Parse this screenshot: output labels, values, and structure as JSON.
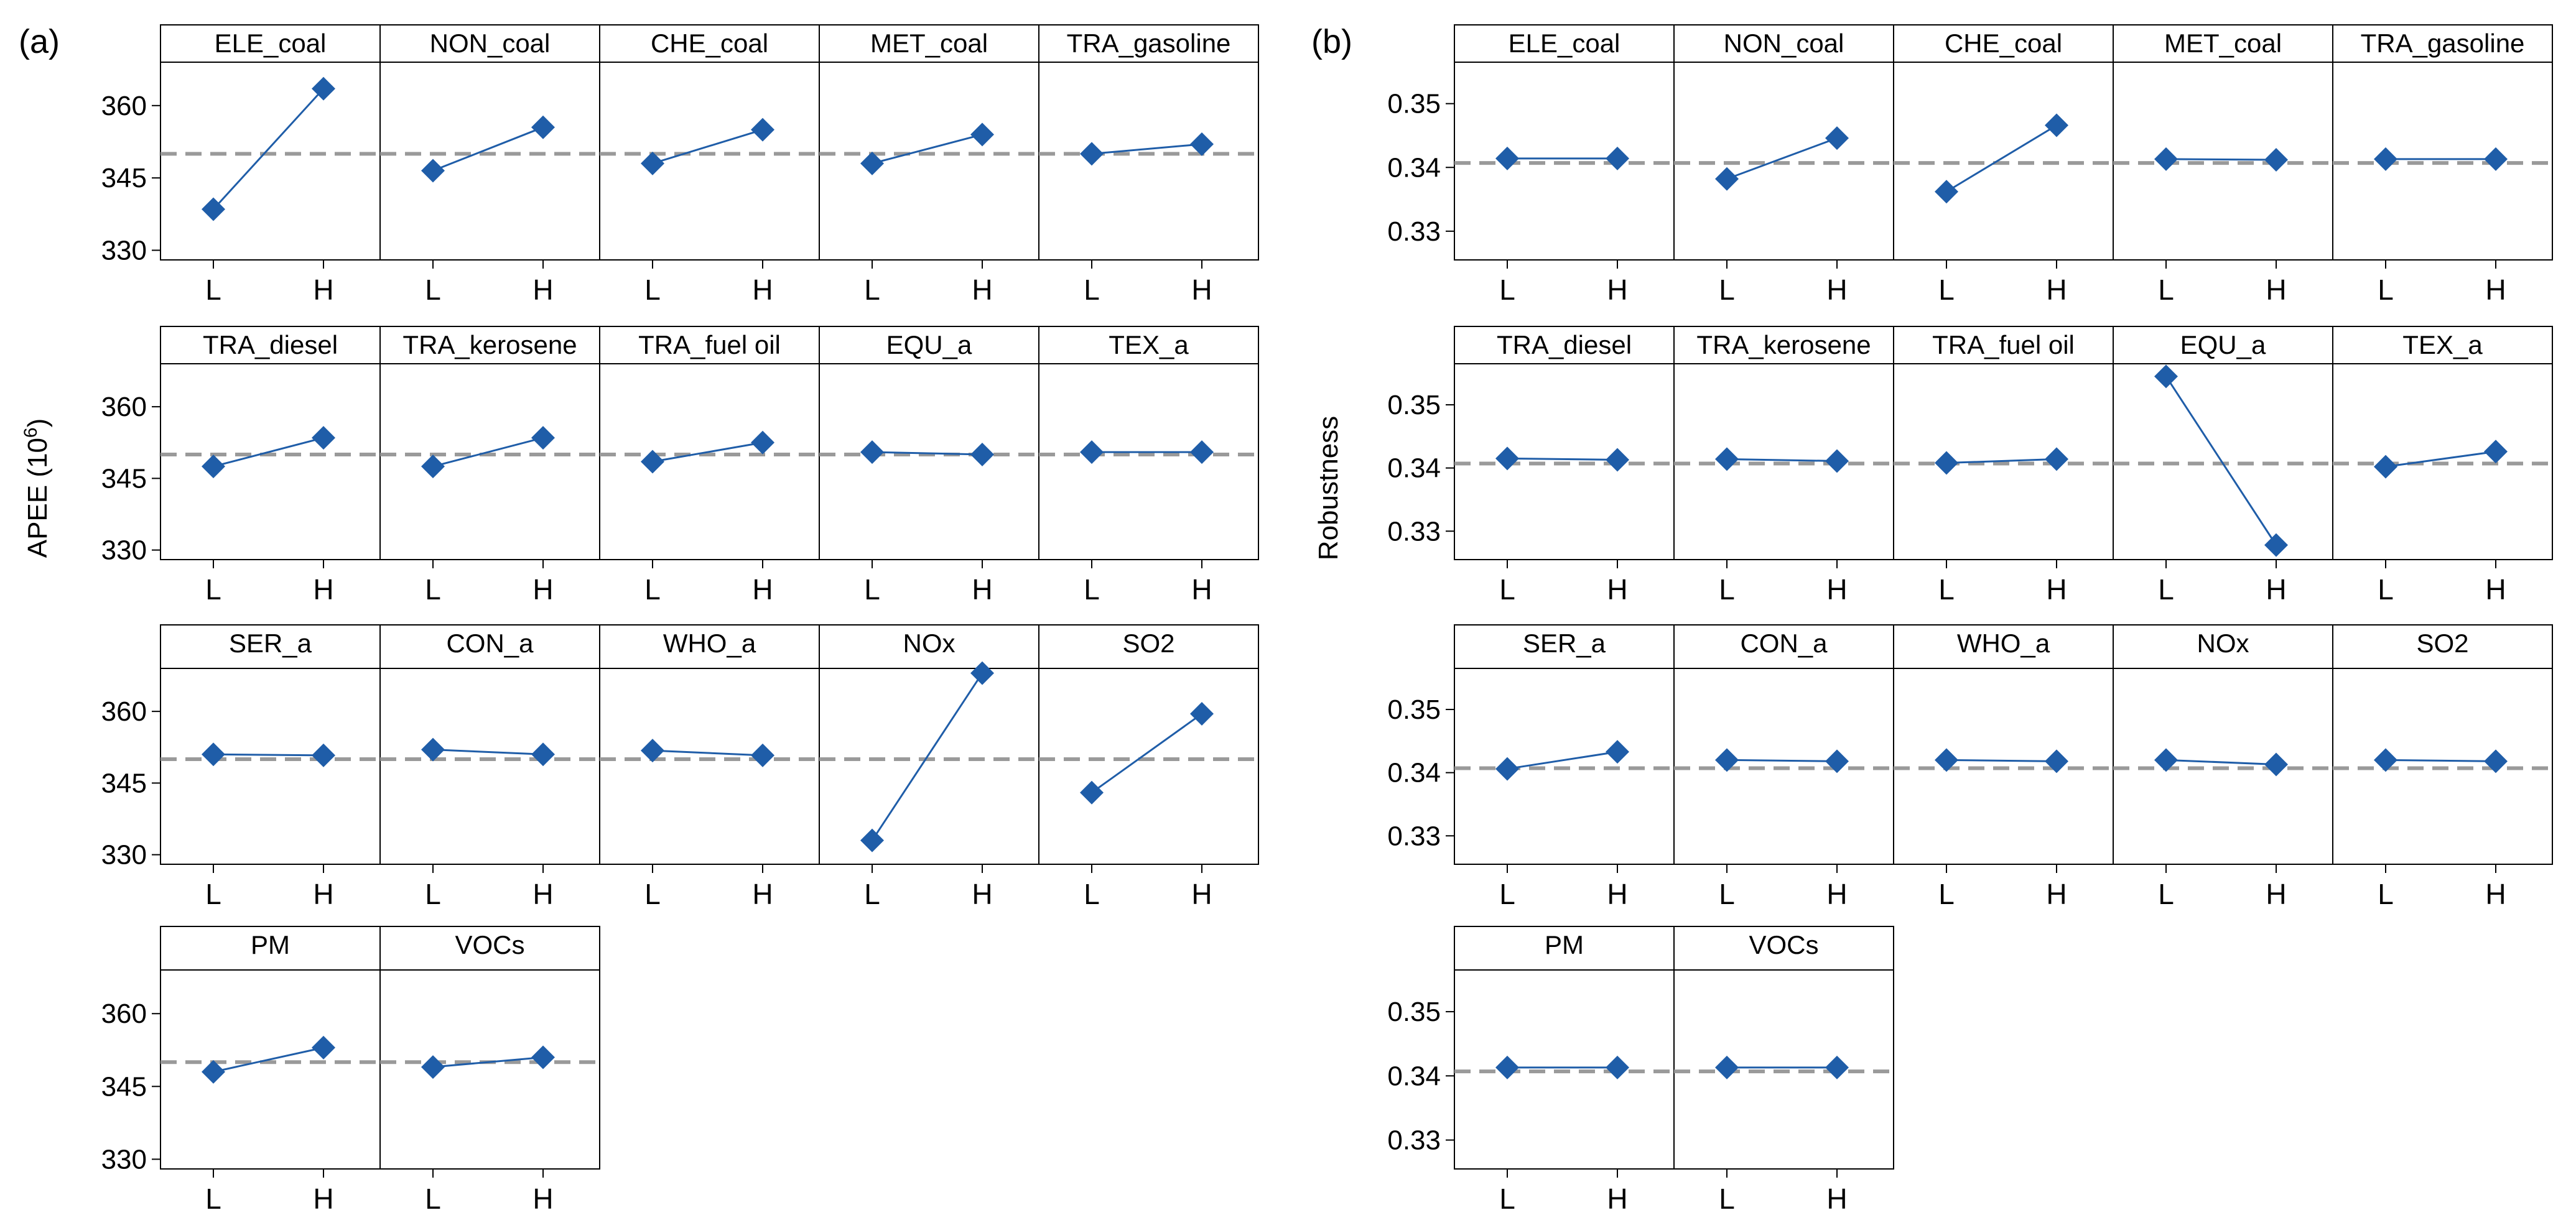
{
  "chart_data": [
    {
      "type": "line",
      "panel_label": "(a)",
      "ylabel_text": "APEE (10",
      "ylabel_sup": "6",
      "ylabel_end": ")",
      "ylim": [
        328,
        369
      ],
      "yticks": [
        "330",
        "345",
        "360"
      ],
      "ytick_values": [
        330,
        345,
        360
      ],
      "x_levels": [
        "L",
        "H"
      ],
      "reference_mean": 350,
      "rows": [
        [
          "ELE_coal",
          "NON_coal",
          "CHE_coal",
          "MET_coal",
          "TRA_gasoline"
        ],
        [
          "TRA_diesel",
          "TRA_kerosene",
          "TRA_fuel oil",
          "EQU_a",
          "TEX_a"
        ],
        [
          "SER_a",
          "CON_a",
          "WHO_a",
          "NOx",
          "SO2"
        ],
        [
          "PM",
          "VOCs"
        ]
      ],
      "values": [
        [
          [
            338.5,
            363.5
          ],
          [
            346.5,
            355.5
          ],
          [
            348,
            355
          ],
          [
            348,
            354
          ],
          [
            350,
            352
          ]
        ],
        [
          [
            347.5,
            353.5
          ],
          [
            347.5,
            353.5
          ],
          [
            348.5,
            352.5
          ],
          [
            350.5,
            350
          ],
          [
            350.5,
            350.5
          ]
        ],
        [
          [
            351,
            350.8
          ],
          [
            352,
            351
          ],
          [
            351.8,
            350.8
          ],
          [
            333,
            368
          ],
          [
            343,
            359.5
          ]
        ],
        [
          [
            348,
            353
          ],
          [
            349,
            351
          ]
        ]
      ]
    },
    {
      "type": "line",
      "panel_label": "(b)",
      "ylabel_text": "Robustness",
      "ylim": [
        0.3255,
        0.3565
      ],
      "yticks": [
        "0.33",
        "0.34",
        "0.35"
      ],
      "ytick_values": [
        0.33,
        0.34,
        0.35
      ],
      "x_levels": [
        "L",
        "H"
      ],
      "reference_mean": 0.3407,
      "rows": [
        [
          "ELE_coal",
          "NON_coal",
          "CHE_coal",
          "MET_coal",
          "TRA_gasoline"
        ],
        [
          "TRA_diesel",
          "TRA_kerosene",
          "TRA_fuel oil",
          "EQU_a",
          "TEX_a"
        ],
        [
          "SER_a",
          "CON_a",
          "WHO_a",
          "NOx",
          "SO2"
        ],
        [
          "PM",
          "VOCs"
        ]
      ],
      "values": [
        [
          [
            0.3414,
            0.3414
          ],
          [
            0.3382,
            0.3446
          ],
          [
            0.3362,
            0.3466
          ],
          [
            0.3413,
            0.3412
          ],
          [
            0.3413,
            0.3413
          ]
        ],
        [
          [
            0.3415,
            0.3413
          ],
          [
            0.3414,
            0.3411
          ],
          [
            0.3408,
            0.3414
          ],
          [
            0.3545,
            0.3278
          ],
          [
            0.3402,
            0.3426
          ]
        ],
        [
          [
            0.3406,
            0.3433
          ],
          [
            0.342,
            0.3418
          ],
          [
            0.342,
            0.3418
          ],
          [
            0.342,
            0.3413
          ],
          [
            0.342,
            0.3418
          ]
        ],
        [
          [
            0.3413,
            0.3413
          ],
          [
            0.3413,
            0.3413
          ]
        ]
      ]
    }
  ],
  "colors": {
    "series": "#1F5DA8",
    "reference_line": "#9A9A9A",
    "frame": "#000000"
  }
}
